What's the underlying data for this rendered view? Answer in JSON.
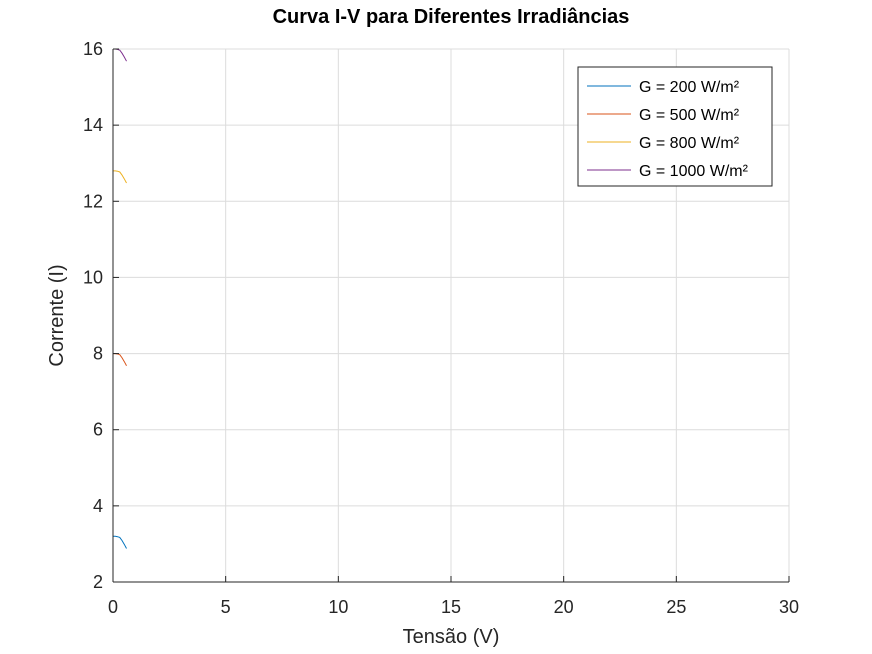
{
  "chart_data": {
    "type": "line",
    "title": "Curva I-V para Diferentes Irradiâncias",
    "xlabel": "Tensão (V)",
    "ylabel": "Corrente (I)",
    "xlim": [
      0,
      30
    ],
    "ylim": [
      2,
      16
    ],
    "xticks": [
      0,
      5,
      10,
      15,
      20,
      25,
      30
    ],
    "yticks": [
      2,
      4,
      6,
      8,
      10,
      12,
      14,
      16
    ],
    "grid": true,
    "legend_position": "top-right",
    "series": [
      {
        "name": "G = 200 W/m²",
        "color": "#0072BD",
        "x": [
          0,
          0.1,
          0.2,
          0.3,
          0.4,
          0.5,
          0.6
        ],
        "y": [
          3.2,
          3.2,
          3.19,
          3.17,
          3.09,
          2.99,
          2.88
        ]
      },
      {
        "name": "G = 500 W/m²",
        "color": "#D95319",
        "x": [
          0,
          0.1,
          0.2,
          0.3,
          0.4,
          0.5,
          0.6
        ],
        "y": [
          8.0,
          8.0,
          7.99,
          7.97,
          7.89,
          7.79,
          7.68
        ]
      },
      {
        "name": "G = 800 W/m²",
        "color": "#EDB120",
        "x": [
          0,
          0.1,
          0.2,
          0.3,
          0.4,
          0.5,
          0.6
        ],
        "y": [
          12.8,
          12.8,
          12.79,
          12.77,
          12.69,
          12.59,
          12.48
        ]
      },
      {
        "name": "G = 1000 W/m²",
        "color": "#7E2F8E",
        "x": [
          0,
          0.1,
          0.2,
          0.3,
          0.4,
          0.5,
          0.6
        ],
        "y": [
          16.0,
          16.0,
          15.99,
          15.97,
          15.89,
          15.79,
          15.68
        ]
      }
    ]
  }
}
